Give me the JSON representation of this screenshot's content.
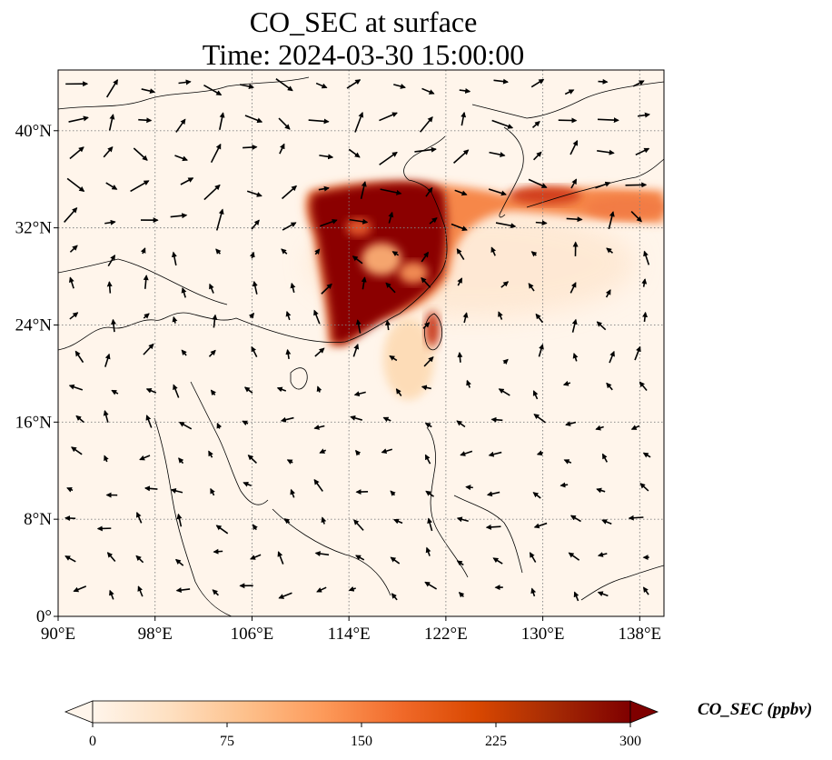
{
  "title_line1": "CO_SEC at surface",
  "title_line2": "Time: 2024-03-30 15:00:00",
  "map": {
    "lon_range": [
      90,
      140
    ],
    "lat_range": [
      0,
      45
    ],
    "lon_ticks": [
      {
        "value": 90,
        "label": "90°E"
      },
      {
        "value": 98,
        "label": "98°E"
      },
      {
        "value": 106,
        "label": "106°E"
      },
      {
        "value": 114,
        "label": "114°E"
      },
      {
        "value": 122,
        "label": "122°E"
      },
      {
        "value": 130,
        "label": "130°E"
      },
      {
        "value": 138,
        "label": "138°E"
      }
    ],
    "lat_ticks": [
      {
        "value": 0,
        "label": "0°"
      },
      {
        "value": 8,
        "label": "8°N"
      },
      {
        "value": 16,
        "label": "16°N"
      },
      {
        "value": 24,
        "label": "24°N"
      },
      {
        "value": 32,
        "label": "32°N"
      },
      {
        "value": 40,
        "label": "40°N"
      }
    ],
    "gridlines": true,
    "wind_vectors": true
  },
  "colorbar": {
    "label": "CO_SEC (ppbv)",
    "min": 0,
    "max": 300,
    "extend": "both",
    "ticks": [
      "0",
      "75",
      "150",
      "225",
      "300"
    ],
    "colormap": [
      "#fff5eb",
      "#fee0c1",
      "#fdc08b",
      "#fd9a5a",
      "#f16a2a",
      "#d94801",
      "#a52a04",
      "#7f0000"
    ]
  }
}
